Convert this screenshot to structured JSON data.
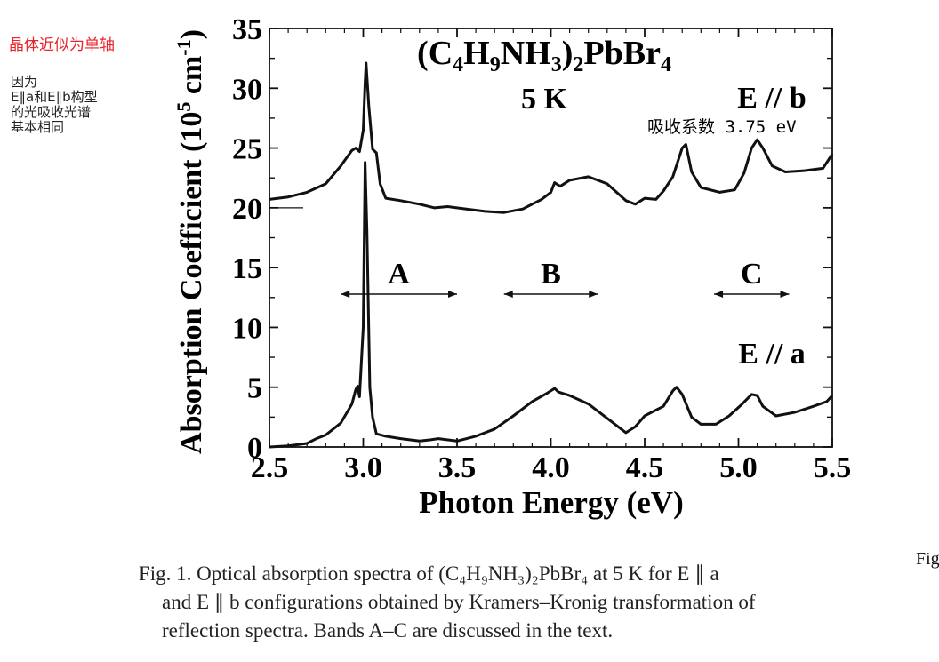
{
  "annotations": {
    "red_note": "晶体近似为单轴",
    "black_note_lines": [
      "因为",
      "E∥a和E∥b构型",
      "的光吸收光谱",
      "基本相同"
    ],
    "inline_note": "吸收系数 3.75 eV"
  },
  "cut_text": "Fig",
  "caption": {
    "line1": "Fig. 1.   Optical absorption spectra of (C₄H₉NH₃)₂PbBr₄ at 5 K for E ∥ a",
    "line2": "and E ∥ b configurations obtained by Kramers–Kronig transformation of",
    "line3": "reflection spectra. Bands A–C are discussed in the text."
  },
  "chart_data": {
    "type": "line",
    "title": "(C4H9NH3)2PbBr4",
    "subtitle": "5 K",
    "xlabel": "Photon Energy (eV)",
    "ylabel": "Absorption Coefficient (10^5 cm^-1)",
    "xlim": [
      2.5,
      5.5
    ],
    "ylim": [
      0,
      35
    ],
    "xticks": [
      "2.5",
      "3.0",
      "3.5",
      "4.0",
      "4.5",
      "5.0",
      "5.5"
    ],
    "yticks": [
      "0",
      "5",
      "10",
      "15",
      "20",
      "25",
      "30",
      "35"
    ],
    "grid": false,
    "series": [
      {
        "name": "E // b",
        "label_text": "E // b",
        "points": [
          [
            2.5,
            20.7
          ],
          [
            2.6,
            20.9
          ],
          [
            2.7,
            21.3
          ],
          [
            2.8,
            22.0
          ],
          [
            2.88,
            23.5
          ],
          [
            2.94,
            24.8
          ],
          [
            2.96,
            25.0
          ],
          [
            2.98,
            24.7
          ],
          [
            3.0,
            26.5
          ],
          [
            3.01,
            30.5
          ],
          [
            3.015,
            32.1
          ],
          [
            3.03,
            28.5
          ],
          [
            3.05,
            24.9
          ],
          [
            3.07,
            24.6
          ],
          [
            3.09,
            22.0
          ],
          [
            3.12,
            20.8
          ],
          [
            3.2,
            20.6
          ],
          [
            3.3,
            20.3
          ],
          [
            3.38,
            20.0
          ],
          [
            3.45,
            20.1
          ],
          [
            3.55,
            19.9
          ],
          [
            3.65,
            19.7
          ],
          [
            3.75,
            19.6
          ],
          [
            3.85,
            19.9
          ],
          [
            3.95,
            20.7
          ],
          [
            4.0,
            21.3
          ],
          [
            4.02,
            22.1
          ],
          [
            4.05,
            21.8
          ],
          [
            4.1,
            22.3
          ],
          [
            4.2,
            22.6
          ],
          [
            4.3,
            22.0
          ],
          [
            4.4,
            20.6
          ],
          [
            4.45,
            20.3
          ],
          [
            4.5,
            20.8
          ],
          [
            4.56,
            20.7
          ],
          [
            4.6,
            21.4
          ],
          [
            4.65,
            22.6
          ],
          [
            4.7,
            25.0
          ],
          [
            4.72,
            25.3
          ],
          [
            4.75,
            23.0
          ],
          [
            4.8,
            21.7
          ],
          [
            4.9,
            21.3
          ],
          [
            4.98,
            21.5
          ],
          [
            5.03,
            22.9
          ],
          [
            5.07,
            25.0
          ],
          [
            5.1,
            25.7
          ],
          [
            5.13,
            25.0
          ],
          [
            5.18,
            23.5
          ],
          [
            5.25,
            23.0
          ],
          [
            5.35,
            23.1
          ],
          [
            5.45,
            23.3
          ],
          [
            5.5,
            24.5
          ]
        ]
      },
      {
        "name": "E // a",
        "label_text": "E // a",
        "points": [
          [
            2.5,
            0.0
          ],
          [
            2.6,
            0.1
          ],
          [
            2.7,
            0.3
          ],
          [
            2.75,
            0.7
          ],
          [
            2.8,
            1.0
          ],
          [
            2.88,
            2.0
          ],
          [
            2.94,
            3.6
          ],
          [
            2.96,
            4.8
          ],
          [
            2.97,
            5.1
          ],
          [
            2.98,
            4.2
          ],
          [
            3.0,
            10.0
          ],
          [
            3.01,
            23.8
          ],
          [
            3.02,
            18.0
          ],
          [
            3.035,
            5.0
          ],
          [
            3.05,
            2.5
          ],
          [
            3.07,
            1.1
          ],
          [
            3.12,
            0.9
          ],
          [
            3.2,
            0.7
          ],
          [
            3.3,
            0.5
          ],
          [
            3.36,
            0.6
          ],
          [
            3.4,
            0.7
          ],
          [
            3.5,
            0.5
          ],
          [
            3.6,
            0.9
          ],
          [
            3.7,
            1.5
          ],
          [
            3.8,
            2.6
          ],
          [
            3.9,
            3.8
          ],
          [
            3.98,
            4.5
          ],
          [
            4.02,
            4.9
          ],
          [
            4.04,
            4.6
          ],
          [
            4.1,
            4.3
          ],
          [
            4.2,
            3.6
          ],
          [
            4.3,
            2.4
          ],
          [
            4.4,
            1.2
          ],
          [
            4.45,
            1.7
          ],
          [
            4.5,
            2.6
          ],
          [
            4.55,
            3.0
          ],
          [
            4.6,
            3.4
          ],
          [
            4.65,
            4.7
          ],
          [
            4.67,
            5.0
          ],
          [
            4.7,
            4.4
          ],
          [
            4.75,
            2.5
          ],
          [
            4.8,
            1.9
          ],
          [
            4.88,
            1.9
          ],
          [
            4.95,
            2.6
          ],
          [
            5.02,
            3.6
          ],
          [
            5.07,
            4.4
          ],
          [
            5.1,
            4.3
          ],
          [
            5.13,
            3.4
          ],
          [
            5.2,
            2.6
          ],
          [
            5.3,
            2.9
          ],
          [
            5.4,
            3.4
          ],
          [
            5.47,
            3.8
          ],
          [
            5.5,
            4.3
          ]
        ]
      }
    ],
    "bands": [
      {
        "label": "A",
        "range": [
          2.88,
          3.5
        ]
      },
      {
        "label": "B",
        "range": [
          3.75,
          4.25
        ]
      },
      {
        "label": "C",
        "range": [
          4.87,
          5.27
        ]
      }
    ],
    "ref_tick_y": 20
  }
}
